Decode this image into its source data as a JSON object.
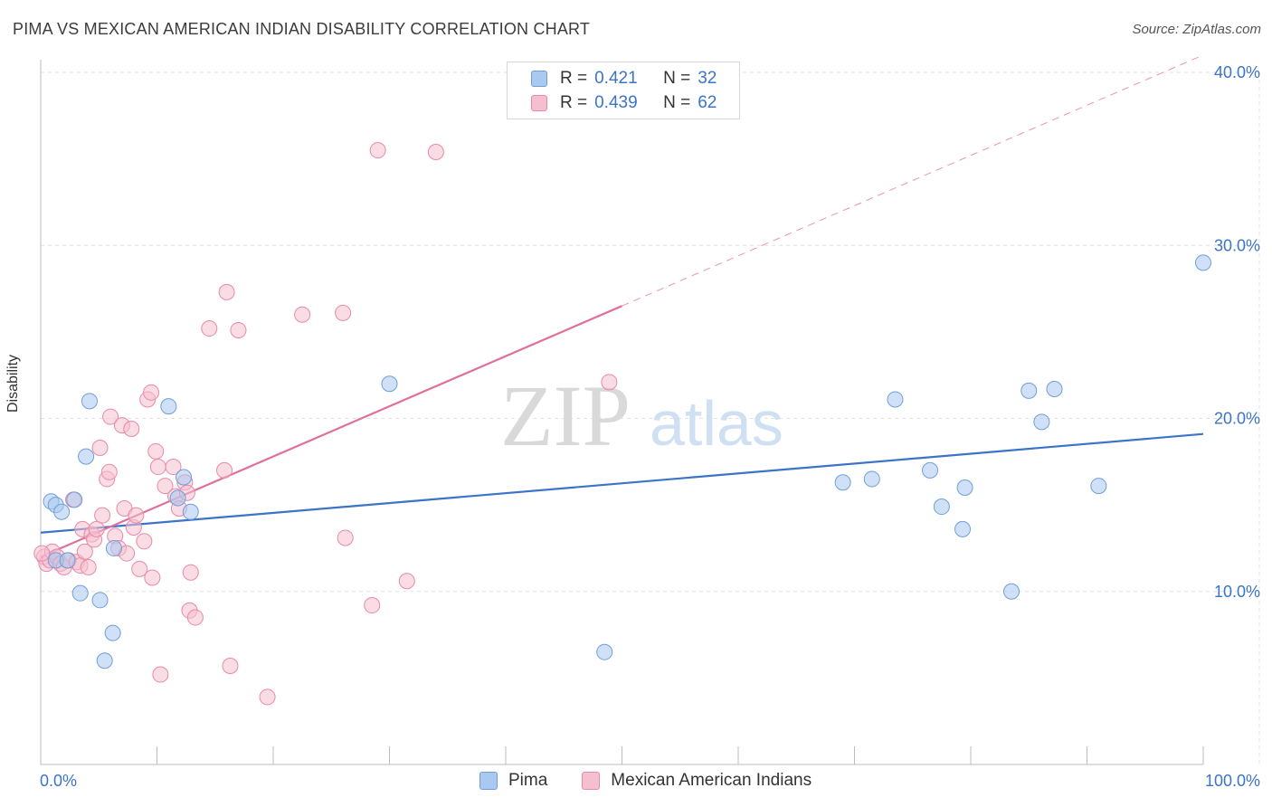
{
  "header": {
    "title": "PIMA VS MEXICAN AMERICAN INDIAN DISABILITY CORRELATION CHART",
    "source": "Source: ZipAtlas.com"
  },
  "watermark": {
    "zip": "ZIP",
    "atlas": "atlas"
  },
  "legend": {
    "rows": [
      {
        "r_label": "R =",
        "r_value": "0.421",
        "n_label": "N =",
        "n_value": "32",
        "color": "#a9c9f0",
        "border": "#6f9fd8"
      },
      {
        "r_label": "R =",
        "r_value": "0.439",
        "n_label": "N =",
        "n_value": "62",
        "color": "#f6bfd0",
        "border": "#e88aa8"
      }
    ]
  },
  "bottom_legend": {
    "items": [
      {
        "label": "Pima",
        "color": "#a9c9f0",
        "border": "#6f9fd8"
      },
      {
        "label": "Mexican American Indians",
        "color": "#f6bfd0",
        "border": "#e88aa8"
      }
    ]
  },
  "chart_data": {
    "type": "scatter",
    "xlabel": "",
    "ylabel": "Disability",
    "xlim": [
      0,
      100
    ],
    "ylim": [
      0,
      40
    ],
    "x_tick_labels": [
      "0.0%",
      "100.0%"
    ],
    "y_ticks": [
      10,
      20,
      30,
      40
    ],
    "y_tick_labels": [
      "10.0%",
      "20.0%",
      "30.0%",
      "40.0%"
    ],
    "grid": true,
    "colors": {
      "pima": "#3b74c8",
      "mexican": "#e0709a"
    },
    "series": [
      {
        "name": "Pima",
        "color": "#a9c9f0",
        "stroke": "#6f9fd8",
        "points": [
          [
            0.9,
            15.2
          ],
          [
            1.3,
            15.0
          ],
          [
            1.8,
            14.6
          ],
          [
            2.9,
            15.3
          ],
          [
            1.3,
            11.8
          ],
          [
            2.3,
            11.8
          ],
          [
            4.2,
            21.0
          ],
          [
            3.9,
            17.8
          ],
          [
            3.4,
            9.9
          ],
          [
            5.1,
            9.5
          ],
          [
            6.2,
            7.6
          ],
          [
            5.5,
            6.0
          ],
          [
            6.3,
            12.5
          ],
          [
            11.0,
            20.7
          ],
          [
            11.8,
            15.4
          ],
          [
            12.3,
            16.6
          ],
          [
            12.9,
            14.6
          ],
          [
            30.0,
            22.0
          ],
          [
            48.5,
            6.5
          ],
          [
            69.0,
            16.3
          ],
          [
            71.5,
            16.5
          ],
          [
            73.5,
            21.1
          ],
          [
            76.5,
            17.0
          ],
          [
            77.5,
            14.9
          ],
          [
            79.5,
            16.0
          ],
          [
            79.3,
            13.6
          ],
          [
            83.5,
            10.0
          ],
          [
            85.0,
            21.6
          ],
          [
            86.1,
            19.8
          ],
          [
            87.2,
            21.7
          ],
          [
            91.0,
            16.1
          ],
          [
            100.0,
            29.0
          ]
        ]
      },
      {
        "name": "Mexican American Indians",
        "color": "#f6bfd0",
        "stroke": "#e88aa8",
        "points": [
          [
            0.3,
            12.0
          ],
          [
            0.5,
            11.6
          ],
          [
            0.8,
            11.8
          ],
          [
            1.0,
            12.3
          ],
          [
            1.4,
            12.0
          ],
          [
            1.7,
            11.6
          ],
          [
            2.0,
            11.4
          ],
          [
            2.4,
            11.8
          ],
          [
            2.8,
            15.3
          ],
          [
            3.1,
            11.7
          ],
          [
            3.4,
            11.5
          ],
          [
            3.6,
            13.6
          ],
          [
            3.8,
            12.3
          ],
          [
            4.1,
            11.4
          ],
          [
            4.4,
            13.3
          ],
          [
            4.6,
            13.0
          ],
          [
            4.8,
            13.6
          ],
          [
            5.1,
            18.3
          ],
          [
            5.3,
            14.4
          ],
          [
            5.7,
            16.5
          ],
          [
            5.9,
            16.9
          ],
          [
            6.0,
            20.1
          ],
          [
            6.4,
            13.2
          ],
          [
            6.7,
            12.5
          ],
          [
            7.0,
            19.6
          ],
          [
            7.2,
            14.8
          ],
          [
            7.4,
            12.2
          ],
          [
            7.8,
            19.4
          ],
          [
            8.0,
            13.7
          ],
          [
            8.2,
            14.4
          ],
          [
            8.5,
            11.3
          ],
          [
            8.9,
            12.9
          ],
          [
            9.2,
            21.1
          ],
          [
            9.5,
            21.5
          ],
          [
            9.6,
            10.8
          ],
          [
            9.9,
            18.1
          ],
          [
            10.1,
            17.2
          ],
          [
            10.3,
            5.2
          ],
          [
            10.7,
            16.1
          ],
          [
            11.4,
            17.2
          ],
          [
            11.6,
            15.5
          ],
          [
            11.9,
            14.8
          ],
          [
            12.4,
            16.3
          ],
          [
            12.6,
            15.7
          ],
          [
            12.8,
            8.9
          ],
          [
            12.9,
            11.1
          ],
          [
            13.3,
            8.5
          ],
          [
            14.5,
            25.2
          ],
          [
            15.8,
            17.0
          ],
          [
            16.0,
            27.3
          ],
          [
            16.3,
            5.7
          ],
          [
            17.0,
            25.1
          ],
          [
            19.5,
            3.9
          ],
          [
            22.5,
            26.0
          ],
          [
            26.0,
            26.1
          ],
          [
            26.2,
            13.1
          ],
          [
            28.5,
            9.2
          ],
          [
            29.0,
            35.5
          ],
          [
            31.5,
            10.6
          ],
          [
            34.0,
            35.4
          ],
          [
            48.9,
            22.1
          ],
          [
            0.1,
            12.2
          ]
        ]
      }
    ],
    "trendlines": [
      {
        "series": "Pima",
        "x": [
          0,
          100
        ],
        "y": [
          13.4,
          19.1
        ],
        "style": "solid"
      },
      {
        "series": "Mexican American Indians",
        "x": [
          0,
          50
        ],
        "y": [
          12.0,
          26.5
        ],
        "style": "solid"
      },
      {
        "series": "Mexican American Indians",
        "x": [
          50,
          100
        ],
        "y": [
          26.5,
          41.0
        ],
        "style": "dashed"
      }
    ]
  }
}
